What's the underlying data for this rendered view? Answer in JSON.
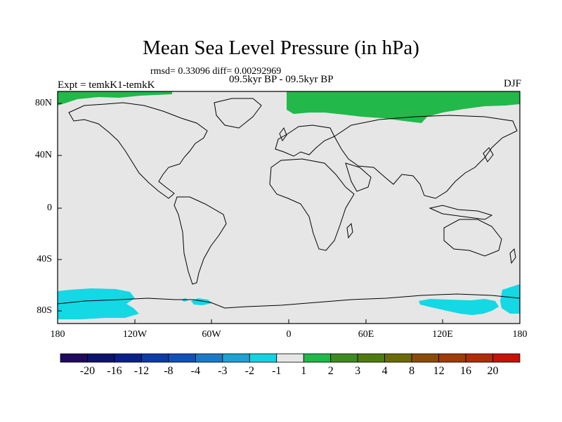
{
  "figure": {
    "title": "Mean Sea Level Pressure (in hPa)",
    "stats": "rmsd= 0.33096  diff= 0.00292969",
    "experiment": "Expt = temkK1-temkK",
    "period": "09.5kyr BP - 09.5kyr BP",
    "season": "DJF"
  },
  "axes": {
    "lat_labels": [
      "80N",
      "40N",
      "0",
      "40S",
      "80S"
    ],
    "lon_labels": [
      "180",
      "120W",
      "60W",
      "0",
      "60E",
      "120E",
      "180"
    ]
  },
  "colorbar": {
    "labels": [
      "-20",
      "-16",
      "-12",
      "-8",
      "-4",
      "-3",
      "-2",
      "-1",
      "1",
      "2",
      "3",
      "4",
      "8",
      "12",
      "16",
      "20"
    ],
    "colors": [
      "#1f0a5e",
      "#0d136b",
      "#0a1f8c",
      "#0c3aa8",
      "#1150b8",
      "#1c7ac4",
      "#1aa3d4",
      "#12d4e0",
      "#e6e6e6",
      "#1fb94a",
      "#3e8a22",
      "#4f7a12",
      "#6a6a08",
      "#8a4a0a",
      "#a03a08",
      "#b22a08",
      "#c81208"
    ]
  },
  "map": {
    "background": "#e6e6e6",
    "positive_color": "#22b84a",
    "negative_color": "#14d8e4",
    "coastline_color": "#000000"
  }
}
